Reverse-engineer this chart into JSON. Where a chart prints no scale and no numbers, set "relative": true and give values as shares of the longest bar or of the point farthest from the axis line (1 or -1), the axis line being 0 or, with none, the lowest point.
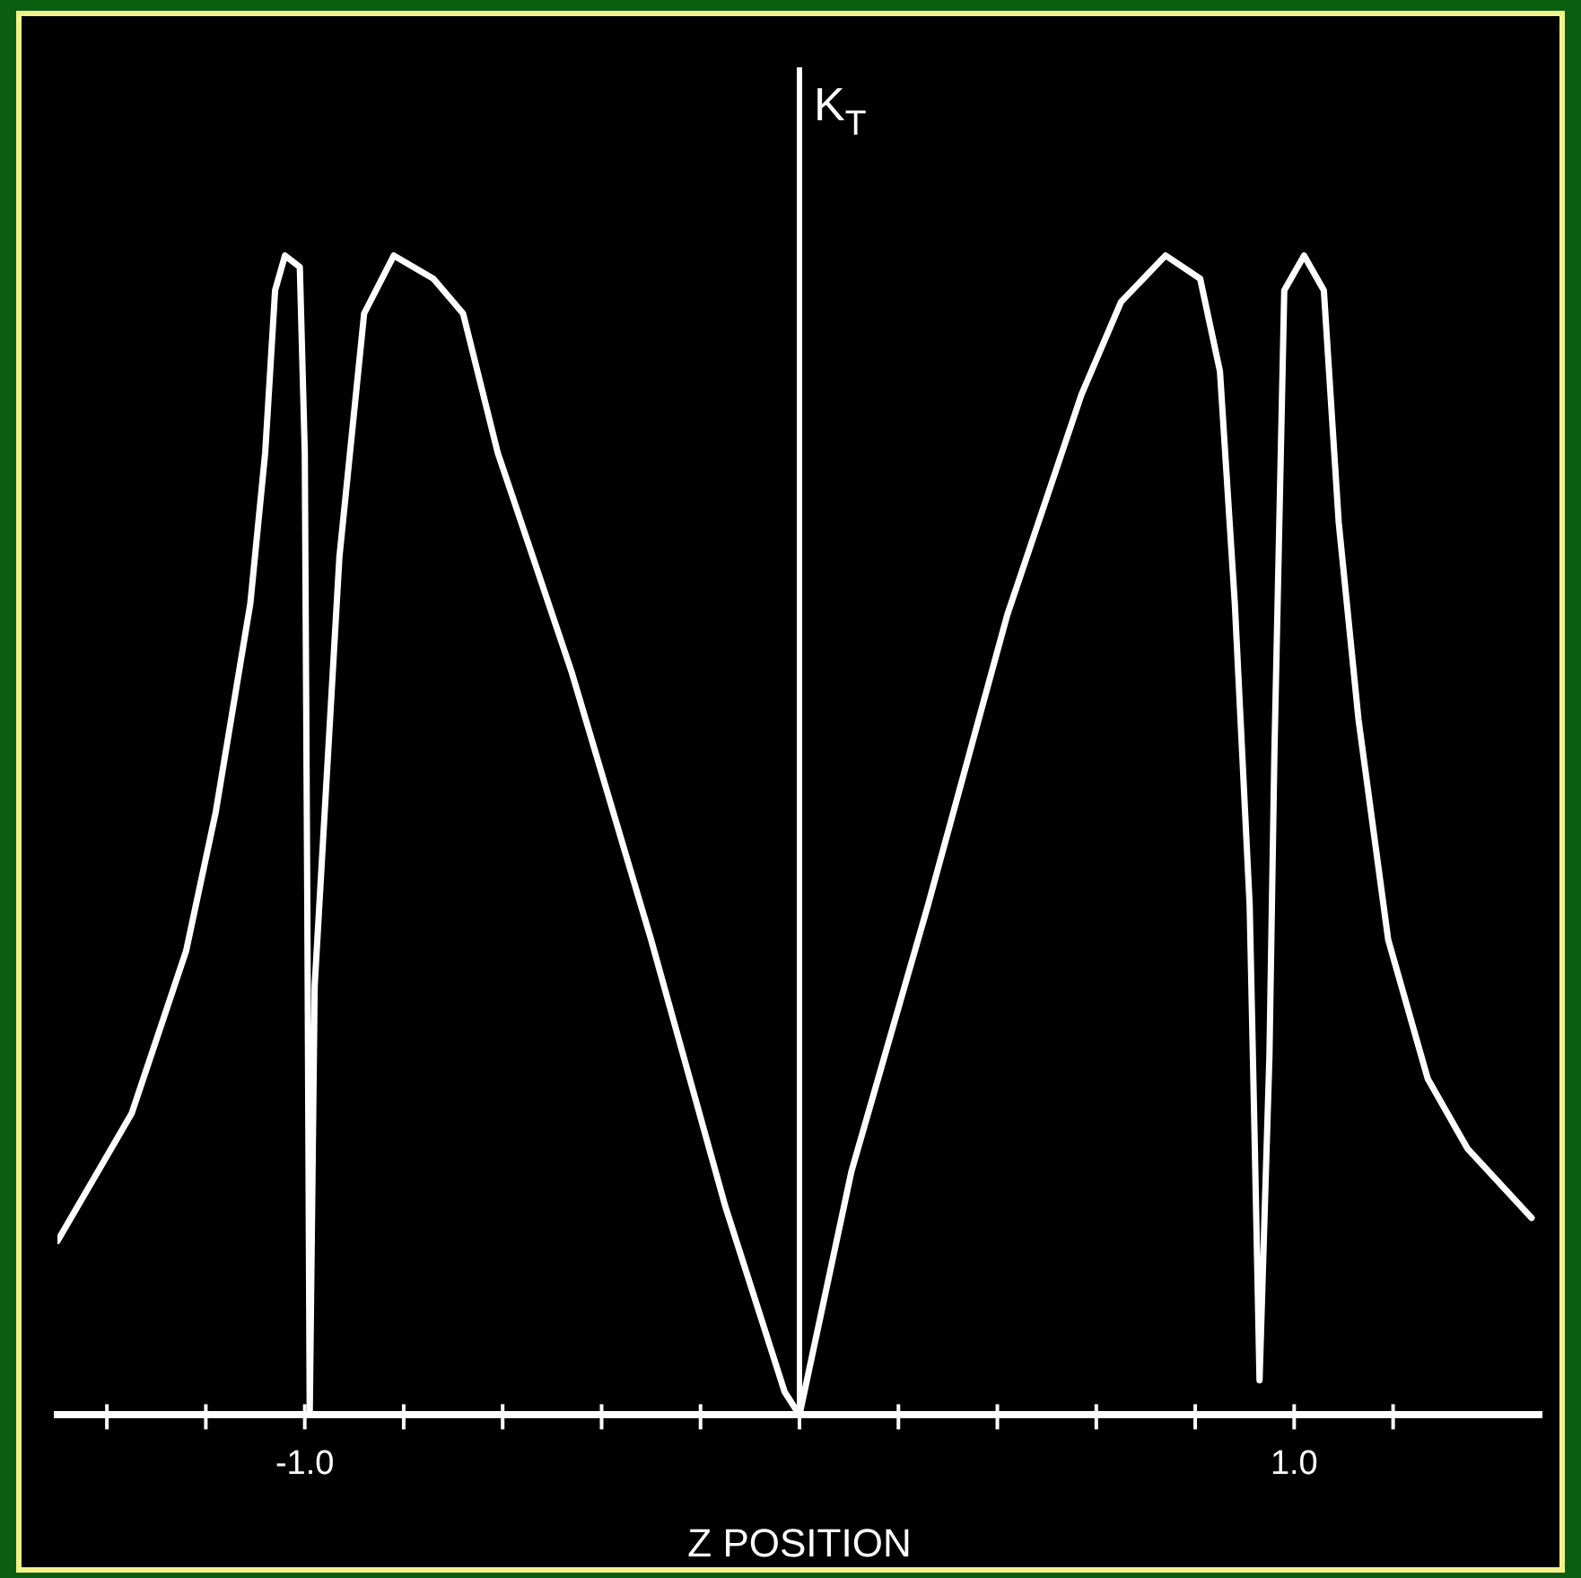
{
  "chart_data": {
    "type": "line",
    "xlabel": "Z POSITION",
    "ylabel": "K$_{T}$",
    "relative": true,
    "legend": false,
    "marker": "none",
    "line_style": "solid",
    "xlim": [
      -1.5,
      1.5
    ],
    "xticks": [
      {
        "value": -1.4,
        "label": null
      },
      {
        "value": -1.2,
        "label": null
      },
      {
        "value": -1.0,
        "label": "-1.0"
      },
      {
        "value": -0.8,
        "label": null
      },
      {
        "value": -0.6,
        "label": null
      },
      {
        "value": -0.4,
        "label": null
      },
      {
        "value": -0.2,
        "label": null
      },
      {
        "value": 0,
        "label": null
      },
      {
        "value": 0.2,
        "label": null
      },
      {
        "value": 0.4,
        "label": null
      },
      {
        "value": 0.6,
        "label": null
      },
      {
        "value": 0.8,
        "label": null
      },
      {
        "value": 1.0,
        "label": "1.0"
      },
      {
        "value": 1.2,
        "label": null
      }
    ],
    "series": [
      {
        "color": "#ffffff",
        "x": [
          -1.5,
          -1.35,
          -1.24,
          -1.18,
          -1.11,
          -1.08,
          -1.06,
          -1.04,
          -1.01,
          -1.0,
          -0.995,
          -0.99,
          -0.98,
          -0.93,
          -0.88,
          -0.82,
          -0.74,
          -0.68,
          -0.61,
          -0.46,
          -0.3,
          -0.15,
          -0.03,
          0,
          0.105,
          0.26,
          0.42,
          0.57,
          0.65,
          0.74,
          0.81,
          0.85,
          0.88,
          0.91,
          0.92,
          0.93,
          0.95,
          0.96,
          0.97,
          0.98,
          1.02,
          1.06,
          1.09,
          1.13,
          1.19,
          1.27,
          1.35,
          1.48
        ],
        "values": [
          0.15,
          0.26,
          0.4,
          0.52,
          0.7,
          0.83,
          0.97,
          1.0,
          0.99,
          0.83,
          0.45,
          0,
          0.37,
          0.74,
          0.95,
          1.0,
          0.98,
          0.95,
          0.83,
          0.64,
          0.41,
          0.18,
          0.02,
          0,
          0.21,
          0.44,
          0.69,
          0.88,
          0.96,
          1.0,
          0.98,
          0.9,
          0.7,
          0.44,
          0.24,
          0.03,
          0.31,
          0.57,
          0.77,
          0.97,
          1.0,
          0.97,
          0.77,
          0.6,
          0.41,
          0.29,
          0.23,
          0.17
        ]
      }
    ]
  }
}
